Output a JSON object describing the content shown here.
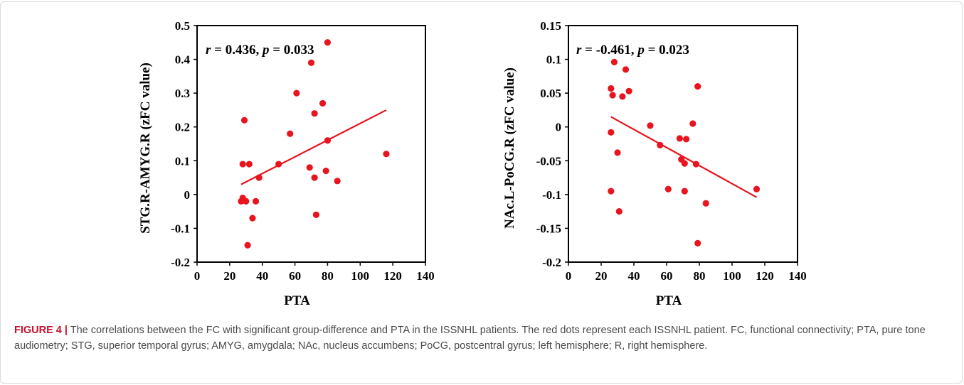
{
  "chart_data": [
    {
      "type": "scatter",
      "title": "",
      "xlabel": "PTA",
      "ylabel": "STG.R-AMYG.R (zFC value)",
      "annotation": {
        "r_label": "r",
        "r_value": " = 0.436, ",
        "p_label": "p",
        "p_value": " = 0.033"
      },
      "xlim": [
        0,
        140
      ],
      "ylim": [
        -0.2,
        0.5
      ],
      "xticks": [
        0,
        20,
        40,
        60,
        80,
        100,
        120,
        140
      ],
      "xtick_labels": [
        "0",
        "20",
        "40",
        "60",
        "80",
        "100",
        "120",
        "140"
      ],
      "yticks": [
        -0.2,
        -0.1,
        0,
        0.1,
        0.2,
        0.3,
        0.4,
        0.5
      ],
      "ytick_labels": [
        "-0.2",
        "-0.1",
        "0",
        "0.1",
        "0.2",
        "0.3",
        "0.4",
        "0.5"
      ],
      "points": [
        [
          27,
          -0.02
        ],
        [
          28,
          -0.01
        ],
        [
          28,
          0.09
        ],
        [
          29,
          0.22
        ],
        [
          30,
          -0.02
        ],
        [
          31,
          -0.15
        ],
        [
          32,
          0.09
        ],
        [
          34,
          -0.07
        ],
        [
          36,
          -0.02
        ],
        [
          38,
          0.05
        ],
        [
          50,
          0.09
        ],
        [
          57,
          0.18
        ],
        [
          61,
          0.3
        ],
        [
          69,
          0.08
        ],
        [
          70,
          0.39
        ],
        [
          72,
          0.24
        ],
        [
          72,
          0.05
        ],
        [
          73,
          -0.06
        ],
        [
          77,
          0.27
        ],
        [
          79,
          0.07
        ],
        [
          80,
          0.45
        ],
        [
          80,
          0.16
        ],
        [
          86,
          0.04
        ],
        [
          116,
          0.12
        ]
      ],
      "fit_line": {
        "x": [
          27,
          116
        ],
        "y": [
          0.03,
          0.25
        ]
      },
      "point_color": "#e8141e",
      "line_color": "#e8141e"
    },
    {
      "type": "scatter",
      "title": "",
      "xlabel": "PTA",
      "ylabel": "NAc.L-PoCG.R (zFC value)",
      "annotation": {
        "r_label": "r",
        "r_value": " = -0.461, ",
        "p_label": "p",
        "p_value": " = 0.023"
      },
      "xlim": [
        0,
        140
      ],
      "ylim": [
        -0.2,
        0.15
      ],
      "xticks": [
        0,
        20,
        40,
        60,
        80,
        100,
        120,
        140
      ],
      "xtick_labels": [
        "0",
        "20",
        "40",
        "60",
        "80",
        "100",
        "120",
        "140"
      ],
      "yticks": [
        -0.2,
        -0.15,
        -0.1,
        -0.05,
        0,
        0.05,
        0.1,
        0.15
      ],
      "ytick_labels": [
        "-0.2",
        "-0.15",
        "-0.1",
        "-0.05",
        "0",
        "0.05",
        "0.1",
        "0.15"
      ],
      "points": [
        [
          26,
          0.057
        ],
        [
          26,
          -0.008
        ],
        [
          26,
          -0.095
        ],
        [
          27,
          0.047
        ],
        [
          28,
          0.096
        ],
        [
          30,
          -0.038
        ],
        [
          31,
          -0.125
        ],
        [
          33,
          0.045
        ],
        [
          35,
          0.085
        ],
        [
          37,
          0.053
        ],
        [
          50,
          0.002
        ],
        [
          56,
          -0.027
        ],
        [
          61,
          -0.092
        ],
        [
          68,
          -0.017
        ],
        [
          69,
          -0.048
        ],
        [
          71,
          -0.054
        ],
        [
          71,
          -0.095
        ],
        [
          72,
          -0.018
        ],
        [
          76,
          0.005
        ],
        [
          78,
          -0.055
        ],
        [
          79,
          0.06
        ],
        [
          79,
          -0.172
        ],
        [
          84,
          -0.113
        ],
        [
          115,
          -0.092
        ]
      ],
      "fit_line": {
        "x": [
          26,
          115
        ],
        "y": [
          0.015,
          -0.104
        ]
      },
      "point_color": "#e8141e",
      "line_color": "#e8141e"
    }
  ],
  "caption": {
    "label": "FIGURE 4 |",
    "text": " The correlations between the FC with significant group-difference and PTA in the ISSNHL patients. The red dots represent each ISSNHL patient. FC, functional connectivity; PTA, pure tone audiometry; STG, superior temporal gyrus; AMYG, amygdala; NAc, nucleus accumbens; PoCG, postcentral gyrus; left hemisphere; R, right hemisphere."
  }
}
